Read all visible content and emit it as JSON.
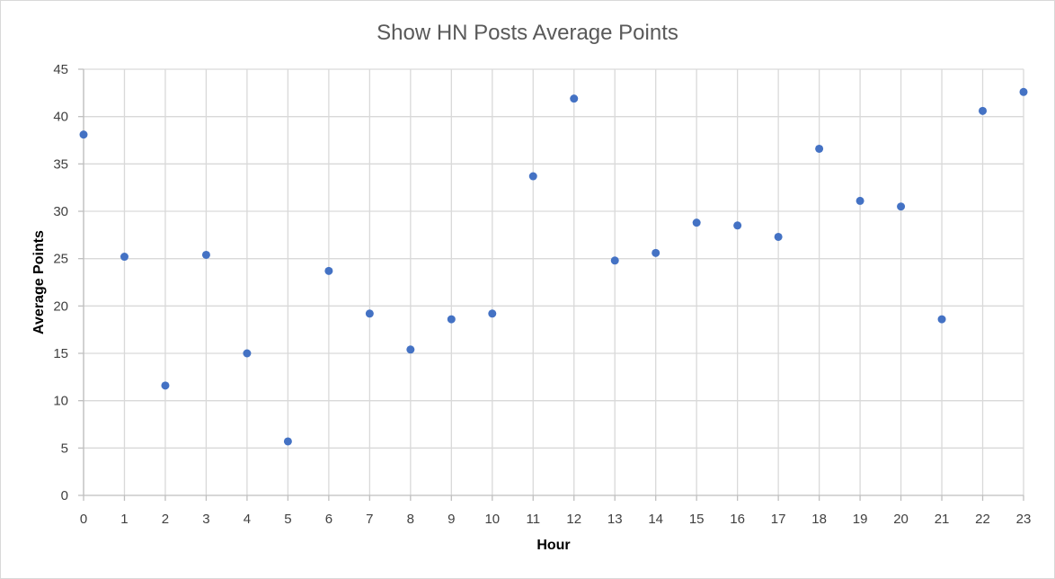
{
  "chart_data": {
    "type": "scatter",
    "title": "Show HN Posts Average Points",
    "xlabel": "Hour",
    "ylabel": "Average Points",
    "xlim": [
      0,
      23
    ],
    "ylim": [
      0,
      45
    ],
    "x_ticks": [
      0,
      1,
      2,
      3,
      4,
      5,
      6,
      7,
      8,
      9,
      10,
      11,
      12,
      13,
      14,
      15,
      16,
      17,
      18,
      19,
      20,
      21,
      22,
      23
    ],
    "y_ticks": [
      0,
      5,
      10,
      15,
      20,
      25,
      30,
      35,
      40,
      45
    ],
    "grid": true,
    "marker_color": "#4472c4",
    "series": [
      {
        "x": [
          0,
          1,
          2,
          3,
          4,
          5,
          6,
          7,
          8,
          9,
          10,
          11,
          12,
          13,
          14,
          15,
          16,
          17,
          18,
          19,
          20,
          21,
          22,
          23
        ],
        "y": [
          38.1,
          25.2,
          11.6,
          25.4,
          15.0,
          5.7,
          23.7,
          19.2,
          15.4,
          18.6,
          19.2,
          33.7,
          41.9,
          24.8,
          25.6,
          28.8,
          28.5,
          27.3,
          36.6,
          31.1,
          30.5,
          18.6,
          40.6,
          42.6
        ]
      }
    ]
  }
}
